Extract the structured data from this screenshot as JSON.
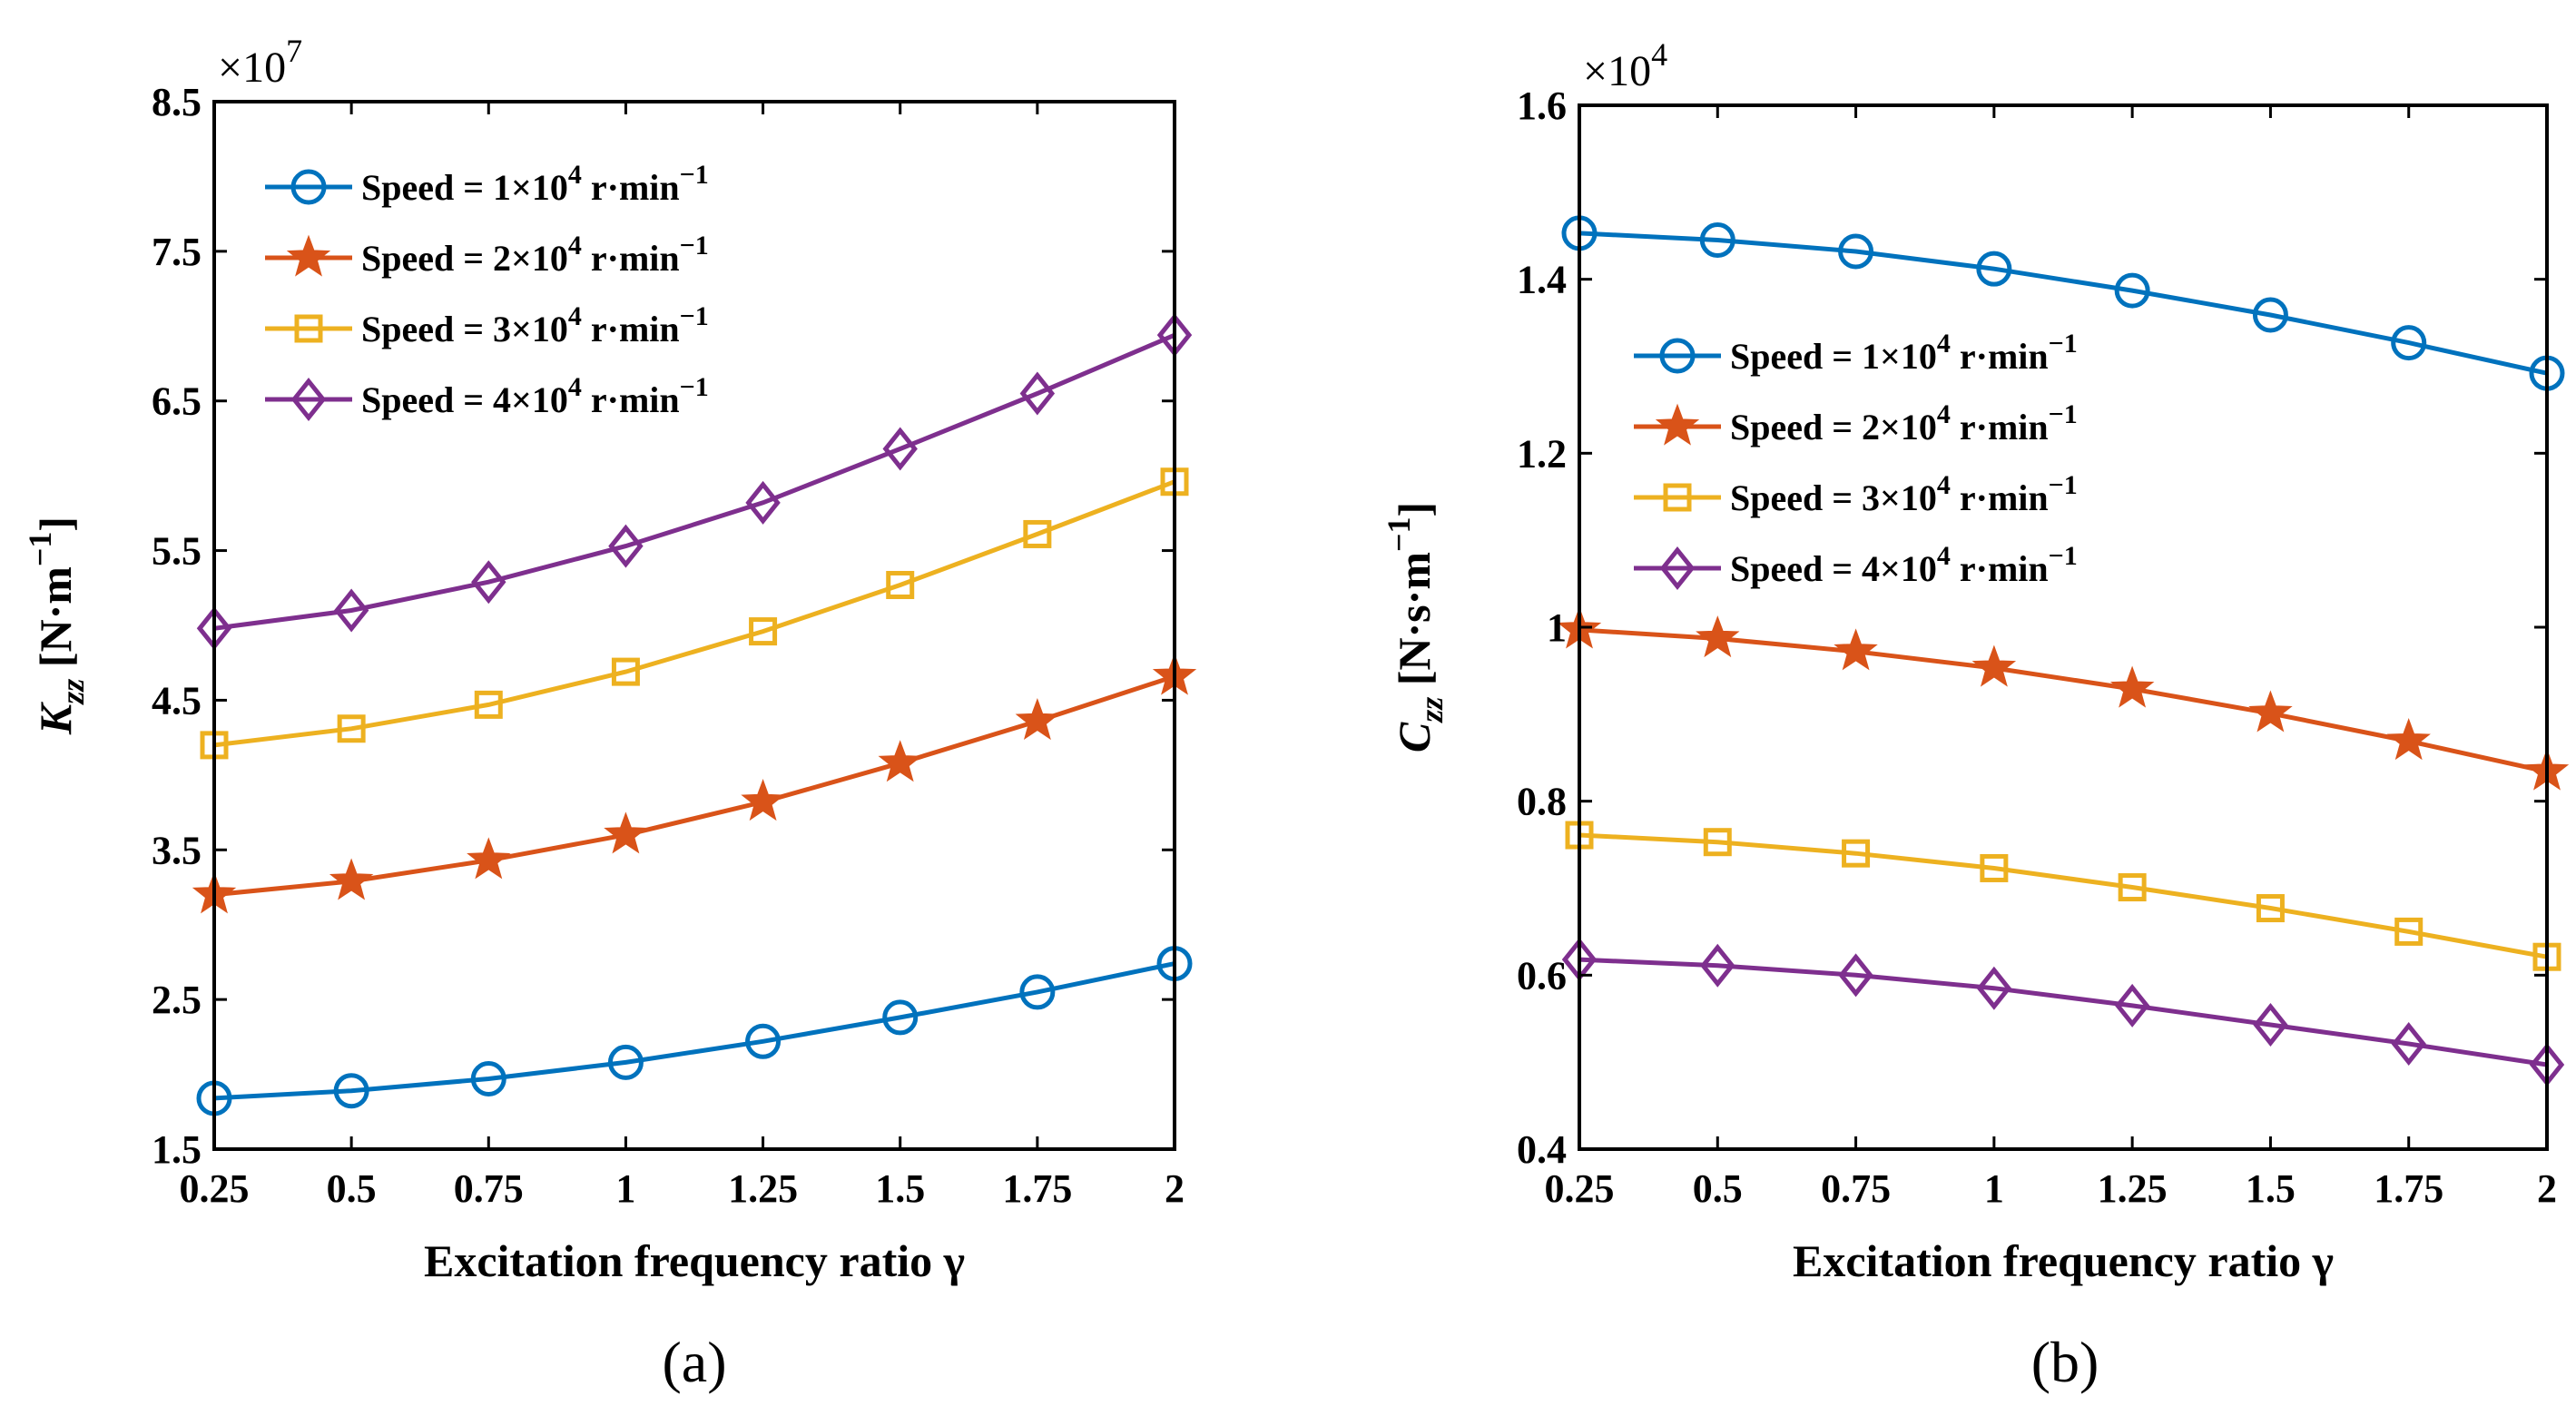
{
  "chart_data": [
    {
      "id": "a",
      "type": "line",
      "caption": "(a)",
      "xlabel": "Excitation frequency ratio γ",
      "ylabel_main": "K",
      "ylabel_sub": "zz",
      "ylabel_unit": " [N·m",
      "ylabel_unit_exp": "−1",
      "ylabel_unit_close": "]",
      "multiplier_base": "×10",
      "multiplier_exp": "7",
      "x": [
        0.25,
        0.5,
        0.75,
        1,
        1.25,
        1.5,
        1.75,
        2
      ],
      "xlim": [
        0.25,
        2
      ],
      "xticks": [
        0.25,
        0.5,
        0.75,
        1,
        1.25,
        1.5,
        1.75,
        2
      ],
      "xtick_labels": [
        "0.25",
        "0.5",
        "0.75",
        "1",
        "1.25",
        "1.5",
        "1.75",
        "2"
      ],
      "ylim": [
        1.5,
        8.5
      ],
      "yticks": [
        1.5,
        2.5,
        3.5,
        4.5,
        5.5,
        6.5,
        7.5,
        8.5
      ],
      "ytick_labels": [
        "1.5",
        "2.5",
        "3.5",
        "4.5",
        "5.5",
        "6.5",
        "7.5",
        "8.5"
      ],
      "legend_position": "top-left",
      "series": [
        {
          "name": "Speed = 1×10",
          "exp": "4",
          "unit": " r·min",
          "unit_exp": "−1",
          "color": "#0072BD",
          "marker": "circle",
          "values": [
            1.84,
            1.89,
            1.97,
            2.08,
            2.22,
            2.38,
            2.55,
            2.74
          ]
        },
        {
          "name": "Speed = 2×10",
          "exp": "4",
          "unit": " r·min",
          "unit_exp": "−1",
          "color": "#D95319",
          "marker": "star",
          "values": [
            3.2,
            3.29,
            3.43,
            3.6,
            3.82,
            4.08,
            4.36,
            4.66
          ]
        },
        {
          "name": "Speed = 3×10",
          "exp": "4",
          "unit": " r·min",
          "unit_exp": "−1",
          "color": "#EDB120",
          "marker": "square",
          "values": [
            4.2,
            4.31,
            4.47,
            4.69,
            4.96,
            5.27,
            5.61,
            5.96
          ]
        },
        {
          "name": "Speed = 4×10",
          "exp": "4",
          "unit": " r·min",
          "unit_exp": "−1",
          "color": "#7E2F8E",
          "marker": "diamond",
          "values": [
            4.98,
            5.1,
            5.29,
            5.53,
            5.82,
            6.18,
            6.55,
            6.94
          ]
        }
      ]
    },
    {
      "id": "b",
      "type": "line",
      "caption": "(b)",
      "xlabel": "Excitation frequency ratio γ",
      "ylabel_main": "C",
      "ylabel_sub": "zz",
      "ylabel_unit": " [N·s·m",
      "ylabel_unit_exp": "−1",
      "ylabel_unit_close": "]",
      "multiplier_base": "×10",
      "multiplier_exp": "4",
      "x": [
        0.25,
        0.5,
        0.75,
        1,
        1.25,
        1.5,
        1.75,
        2
      ],
      "xlim": [
        0.25,
        2
      ],
      "xticks": [
        0.25,
        0.5,
        0.75,
        1,
        1.25,
        1.5,
        1.75,
        2
      ],
      "xtick_labels": [
        "0.25",
        "0.5",
        "0.75",
        "1",
        "1.25",
        "1.5",
        "1.75",
        "2"
      ],
      "ylim": [
        0.4,
        1.6
      ],
      "yticks": [
        0.4,
        0.6,
        0.8,
        1.0,
        1.2,
        1.4,
        1.6
      ],
      "ytick_labels": [
        "0.4",
        "0.6",
        "0.8",
        "1",
        "1.2",
        "1.4",
        "1.6"
      ],
      "legend_position": "center-left",
      "series": [
        {
          "name": "Speed = 1×10",
          "exp": "4",
          "unit": " r·min",
          "unit_exp": "−1",
          "color": "#0072BD",
          "marker": "circle",
          "values": [
            1.453,
            1.445,
            1.432,
            1.412,
            1.387,
            1.359,
            1.327,
            1.292
          ]
        },
        {
          "name": "Speed = 2×10",
          "exp": "4",
          "unit": " r·min",
          "unit_exp": "−1",
          "color": "#D95319",
          "marker": "star",
          "values": [
            0.997,
            0.987,
            0.972,
            0.953,
            0.929,
            0.901,
            0.869,
            0.834
          ]
        },
        {
          "name": "Speed = 3×10",
          "exp": "4",
          "unit": " r·min",
          "unit_exp": "−1",
          "color": "#EDB120",
          "marker": "square",
          "values": [
            0.761,
            0.753,
            0.74,
            0.723,
            0.701,
            0.677,
            0.65,
            0.621
          ]
        },
        {
          "name": "Speed = 4×10",
          "exp": "4",
          "unit": " r·min",
          "unit_exp": "−1",
          "color": "#7E2F8E",
          "marker": "diamond",
          "values": [
            0.618,
            0.611,
            0.6,
            0.585,
            0.565,
            0.543,
            0.521,
            0.497
          ]
        }
      ]
    }
  ]
}
